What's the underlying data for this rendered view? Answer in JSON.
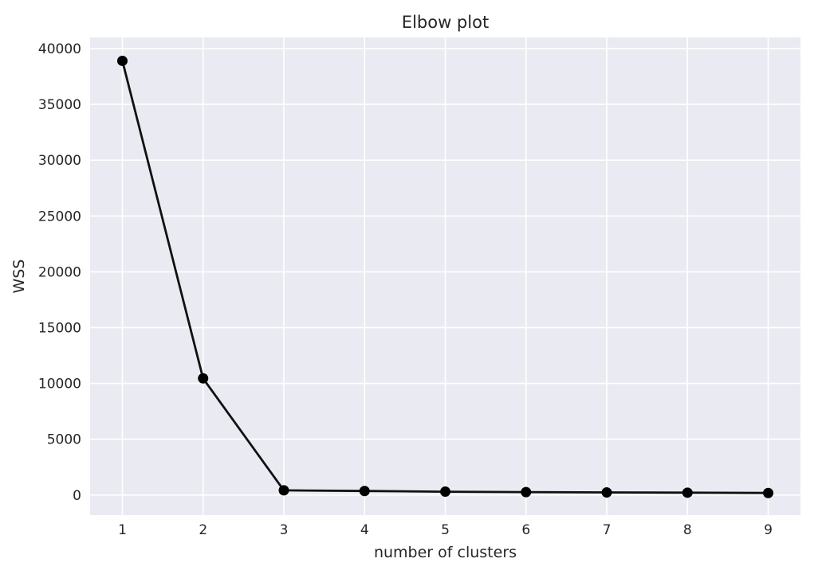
{
  "chart_data": {
    "type": "line",
    "title": "Elbow plot",
    "xlabel": "number of clusters",
    "ylabel": "WSS",
    "x": [
      1,
      2,
      3,
      4,
      5,
      6,
      7,
      8,
      9
    ],
    "series": [
      {
        "values": [
          38900,
          10450,
          420,
          360,
          300,
          260,
          230,
          210,
          180
        ]
      }
    ],
    "xticks": [
      1,
      2,
      3,
      4,
      5,
      6,
      7,
      8,
      9
    ],
    "yticks": [
      0,
      5000,
      10000,
      15000,
      20000,
      25000,
      30000,
      35000,
      40000
    ],
    "xlim": [
      0.6,
      9.4
    ],
    "ylim": [
      -1800,
      41000
    ],
    "grid": true,
    "colors": {
      "background": "#eaeaf2",
      "grid": "#ffffff",
      "line": "#111111",
      "marker": "#000000"
    }
  }
}
